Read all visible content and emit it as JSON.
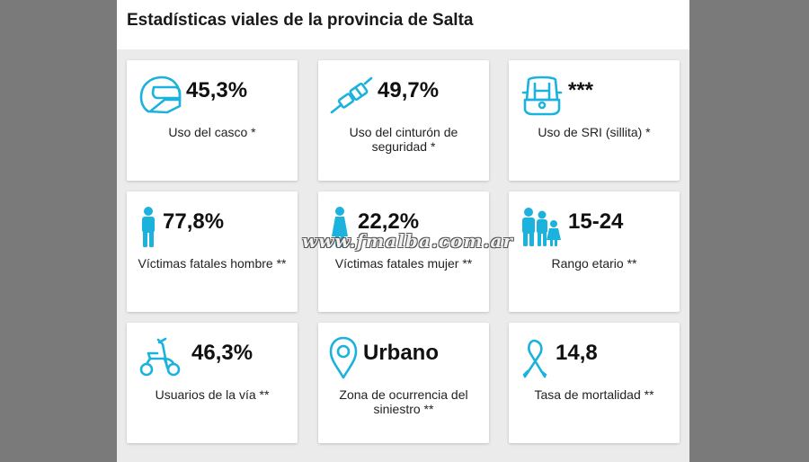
{
  "header": {
    "title": "Estadísticas viales de la provincia de Salta"
  },
  "accent_color": "#1bb2dd",
  "cards": [
    {
      "icon": "helmet-icon",
      "value": "45,3%",
      "label": "Uso del casco *"
    },
    {
      "icon": "seatbelt-icon",
      "value": "49,7%",
      "label": "Uso del cinturón de seguridad *"
    },
    {
      "icon": "child-seat-icon",
      "value": "***",
      "label": "Uso de SRI (sillita) *"
    },
    {
      "icon": "man-icon",
      "value": "77,8%",
      "label": "Víctimas fatales hombre **"
    },
    {
      "icon": "woman-icon",
      "value": "22,2%",
      "label": "Víctimas fatales mujer **"
    },
    {
      "icon": "family-icon",
      "value": "15-24",
      "label": "Rango etario **"
    },
    {
      "icon": "scooter-icon",
      "value": "46,3%",
      "label": "Usuarios de la vía **"
    },
    {
      "icon": "location-pin-icon",
      "value": "Urbano",
      "label": "Zona de ocurrencia del siniestro **"
    },
    {
      "icon": "ribbon-icon",
      "value": "14,8",
      "label": "Tasa de mortalidad **"
    }
  ],
  "watermark": "www.fmalba.com.ar"
}
